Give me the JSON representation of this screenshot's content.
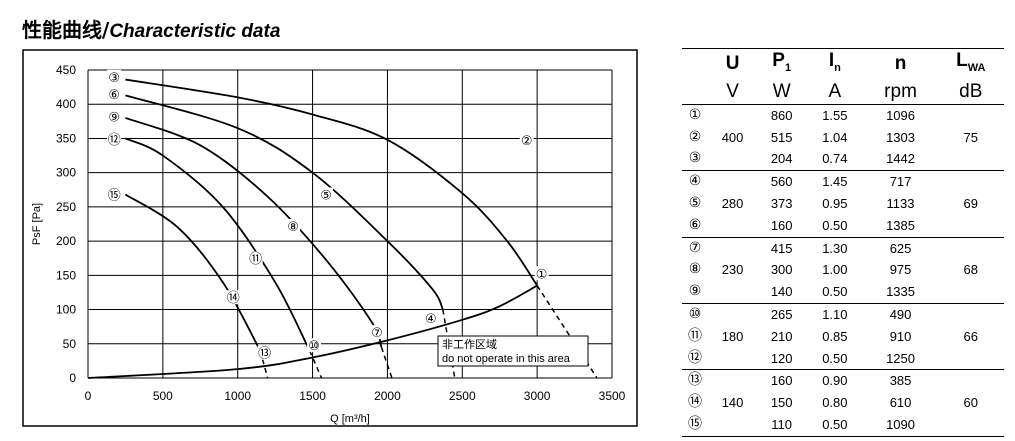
{
  "title": {
    "zh": "性能曲线/",
    "en": "Characteristic data"
  },
  "chart_data": {
    "type": "line",
    "xlabel": "Q [m³/h]",
    "ylabel": "PsF [Pa]",
    "xlim": [
      0,
      3500
    ],
    "ylim": [
      0,
      450
    ],
    "xticks": [
      "0",
      "500",
      "1000",
      "1500",
      "2000",
      "2500",
      "3000",
      "3500"
    ],
    "yticks": [
      "0",
      "50",
      "100",
      "150",
      "200",
      "250",
      "300",
      "350",
      "400",
      "450"
    ],
    "grid": true,
    "series": [
      {
        "name": "①",
        "kind": "operating_limit",
        "points": [
          [
            0,
            0
          ],
          [
            1000,
            13
          ],
          [
            1500,
            30
          ],
          [
            2000,
            55
          ],
          [
            2500,
            85
          ],
          [
            2750,
            105
          ],
          [
            3000,
            135
          ]
        ]
      },
      {
        "name": "②",
        "points": [
          [
            250,
            436
          ],
          [
            1000,
            410
          ],
          [
            1500,
            385
          ],
          [
            2000,
            348
          ],
          [
            2500,
            270
          ],
          [
            2800,
            200
          ],
          [
            3000,
            135
          ]
        ],
        "dashed_to": [
          3400,
          0
        ]
      },
      {
        "name": "⑤",
        "points": [
          [
            250,
            413
          ],
          [
            1000,
            365
          ],
          [
            1500,
            300
          ],
          [
            2000,
            200
          ],
          [
            2300,
            130
          ],
          [
            2370,
            100
          ]
        ],
        "dashed_to": [
          2450,
          0
        ]
      },
      {
        "name": "⑧",
        "points": [
          [
            250,
            380
          ],
          [
            750,
            340
          ],
          [
            1200,
            265
          ],
          [
            1600,
            170
          ],
          [
            1900,
            80
          ],
          [
            1960,
            45
          ]
        ],
        "dashed_to": [
          2030,
          0
        ]
      },
      {
        "name": "⑪",
        "points": [
          [
            250,
            350
          ],
          [
            500,
            325
          ],
          [
            900,
            250
          ],
          [
            1250,
            140
          ],
          [
            1480,
            40
          ]
        ],
        "dashed_to": [
          1560,
          0
        ]
      },
      {
        "name": "⑭",
        "points": [
          [
            250,
            268
          ],
          [
            600,
            220
          ],
          [
            900,
            140
          ],
          [
            1150,
            40
          ]
        ],
        "dashed_to": [
          1200,
          0
        ]
      }
    ],
    "curve_labels": [
      {
        "text": "③",
        "x": 175,
        "y": 440
      },
      {
        "text": "⑥",
        "x": 175,
        "y": 415
      },
      {
        "text": "⑨",
        "x": 175,
        "y": 382
      },
      {
        "text": "⑫",
        "x": 175,
        "y": 349
      },
      {
        "text": "⑮",
        "x": 175,
        "y": 268
      },
      {
        "text": "②",
        "x": 2930,
        "y": 348
      },
      {
        "text": "⑤",
        "x": 1590,
        "y": 268
      },
      {
        "text": "⑧",
        "x": 1370,
        "y": 222
      },
      {
        "text": "⑪",
        "x": 1120,
        "y": 175
      },
      {
        "text": "⑭",
        "x": 970,
        "y": 118
      },
      {
        "text": "①",
        "x": 3030,
        "y": 153
      },
      {
        "text": "④",
        "x": 2290,
        "y": 88
      },
      {
        "text": "⑦",
        "x": 1930,
        "y": 67
      },
      {
        "text": "⑩",
        "x": 1510,
        "y": 48
      },
      {
        "text": "⑬",
        "x": 1180,
        "y": 37
      }
    ],
    "annotation": {
      "zh": "非工作区域",
      "en": "do not operate in this area"
    }
  },
  "table": {
    "headers": [
      {
        "sym": "U",
        "sub": "",
        "unit": "V"
      },
      {
        "sym": "P",
        "sub": "1",
        "unit": "W"
      },
      {
        "sym": "I",
        "sub": "n",
        "unit": "A"
      },
      {
        "sym": "n",
        "sub": "",
        "unit": "rpm"
      },
      {
        "sym": "L",
        "sub": "WA",
        "unit": "dB"
      }
    ],
    "groups": [
      {
        "voltage": "400",
        "lwa": "75",
        "rows": [
          {
            "id": "①",
            "p1": "860",
            "in": "1.55",
            "n": "1096"
          },
          {
            "id": "②",
            "p1": "515",
            "in": "1.04",
            "n": "1303"
          },
          {
            "id": "③",
            "p1": "204",
            "in": "0.74",
            "n": "1442"
          }
        ]
      },
      {
        "voltage": "280",
        "lwa": "69",
        "rows": [
          {
            "id": "④",
            "p1": "560",
            "in": "1.45",
            "n": "717"
          },
          {
            "id": "⑤",
            "p1": "373",
            "in": "0.95",
            "n": "1133"
          },
          {
            "id": "⑥",
            "p1": "160",
            "in": "0.50",
            "n": "1385"
          }
        ]
      },
      {
        "voltage": "230",
        "lwa": "68",
        "rows": [
          {
            "id": "⑦",
            "p1": "415",
            "in": "1.30",
            "n": "625"
          },
          {
            "id": "⑧",
            "p1": "300",
            "in": "1.00",
            "n": "975"
          },
          {
            "id": "⑨",
            "p1": "140",
            "in": "0.50",
            "n": "1335"
          }
        ]
      },
      {
        "voltage": "180",
        "lwa": "66",
        "rows": [
          {
            "id": "⑩",
            "p1": "265",
            "in": "1.10",
            "n": "490"
          },
          {
            "id": "⑪",
            "p1": "210",
            "in": "0.85",
            "n": "910"
          },
          {
            "id": "⑫",
            "p1": "120",
            "in": "0.50",
            "n": "1250"
          }
        ]
      },
      {
        "voltage": "140",
        "lwa": "60",
        "rows": [
          {
            "id": "⑬",
            "p1": "160",
            "in": "0.90",
            "n": "385"
          },
          {
            "id": "⑭",
            "p1": "150",
            "in": "0.80",
            "n": "610"
          },
          {
            "id": "⑮",
            "p1": "110",
            "in": "0.50",
            "n": "1090"
          }
        ]
      }
    ]
  }
}
